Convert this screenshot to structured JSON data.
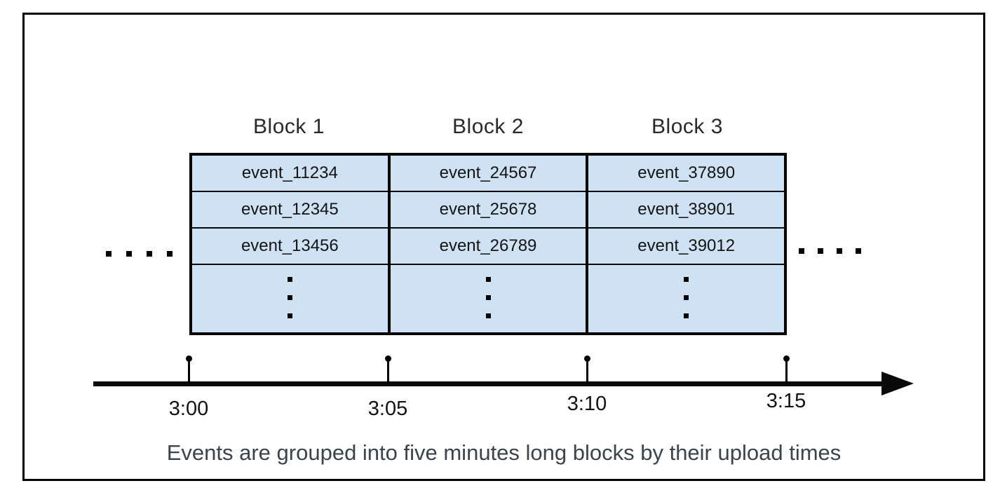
{
  "diagram": {
    "blocks": [
      {
        "title": "Block 1",
        "events": [
          "event_11234",
          "event_12345",
          "event_13456"
        ]
      },
      {
        "title": "Block 2",
        "events": [
          "event_24567",
          "event_25678",
          "event_26789"
        ]
      },
      {
        "title": "Block 3",
        "events": [
          "event_37890",
          "event_38901",
          "event_39012"
        ]
      }
    ],
    "timeline": {
      "tick_labels": [
        "3:00",
        "3:05",
        "3:10",
        "3:15"
      ]
    },
    "caption": "Events are grouped into five minutes long blocks by their upload times",
    "colors": {
      "block_fill": "#cfe2f3",
      "line": "#000000",
      "caption_text": "#3d434a"
    }
  }
}
